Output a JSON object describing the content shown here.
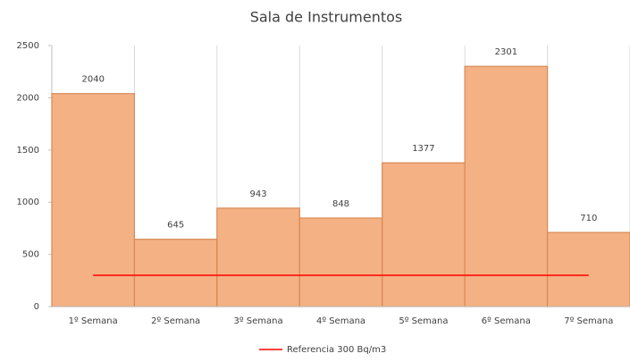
{
  "chart_data": {
    "type": "bar",
    "title": "Sala de Instrumentos",
    "categories": [
      "1º Semana",
      "2º Semana",
      "3º Semana",
      "4º Semana",
      "5º Semana",
      "6º Semana",
      "7º Semana"
    ],
    "values": [
      2040,
      645,
      943,
      848,
      1377,
      2301,
      710
    ],
    "color": "#f4b183",
    "reference": {
      "type": "line",
      "name": "Referencia 300 Bq/m3",
      "color": "#ff0000",
      "values": [
        300,
        300,
        300,
        300,
        300,
        300,
        300
      ]
    },
    "ylim": [
      0,
      2500
    ],
    "yticks": [
      0,
      500,
      1000,
      1500,
      2000,
      2500
    ],
    "legend": "bottom"
  }
}
